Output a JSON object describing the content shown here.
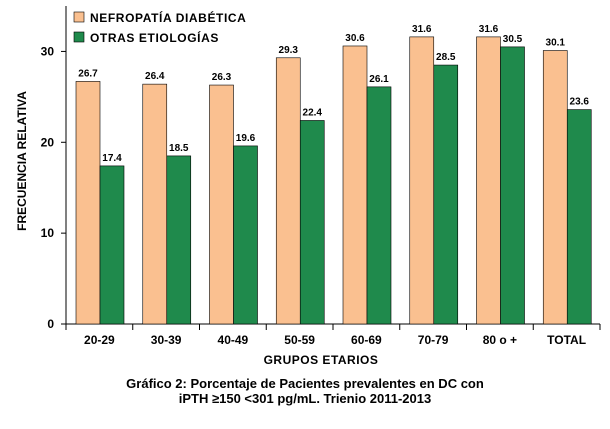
{
  "chart_data": {
    "type": "bar",
    "categories": [
      "20-29",
      "30-39",
      "40-49",
      "50-59",
      "60-69",
      "70-79",
      "80 o +",
      "TOTAL"
    ],
    "series": [
      {
        "name": "NEFROPATÍA DIABÉTICA",
        "color": "#fac090",
        "values": [
          26.7,
          26.4,
          26.3,
          29.3,
          30.6,
          31.6,
          31.6,
          30.1
        ]
      },
      {
        "name": "OTRAS ETIOLOGÍAS",
        "color": "#1f8a4c",
        "values": [
          17.4,
          18.5,
          19.6,
          22.4,
          26.1,
          28.5,
          30.5,
          23.6
        ]
      }
    ],
    "xlabel": "GRUPOS ETARIOS",
    "ylabel": "FRECUENCIA RELATIVA",
    "ylim": [
      0,
      35
    ],
    "yticks": [
      0,
      10,
      20,
      30
    ],
    "legend_position": "top-left",
    "grid": false
  },
  "caption": {
    "line1": "Gráfico 2: Porcentaje de Pacientes prevalentes en DC con",
    "line2": "iPTH ≥150 <301 pg/mL. Trienio 2011-2013"
  }
}
